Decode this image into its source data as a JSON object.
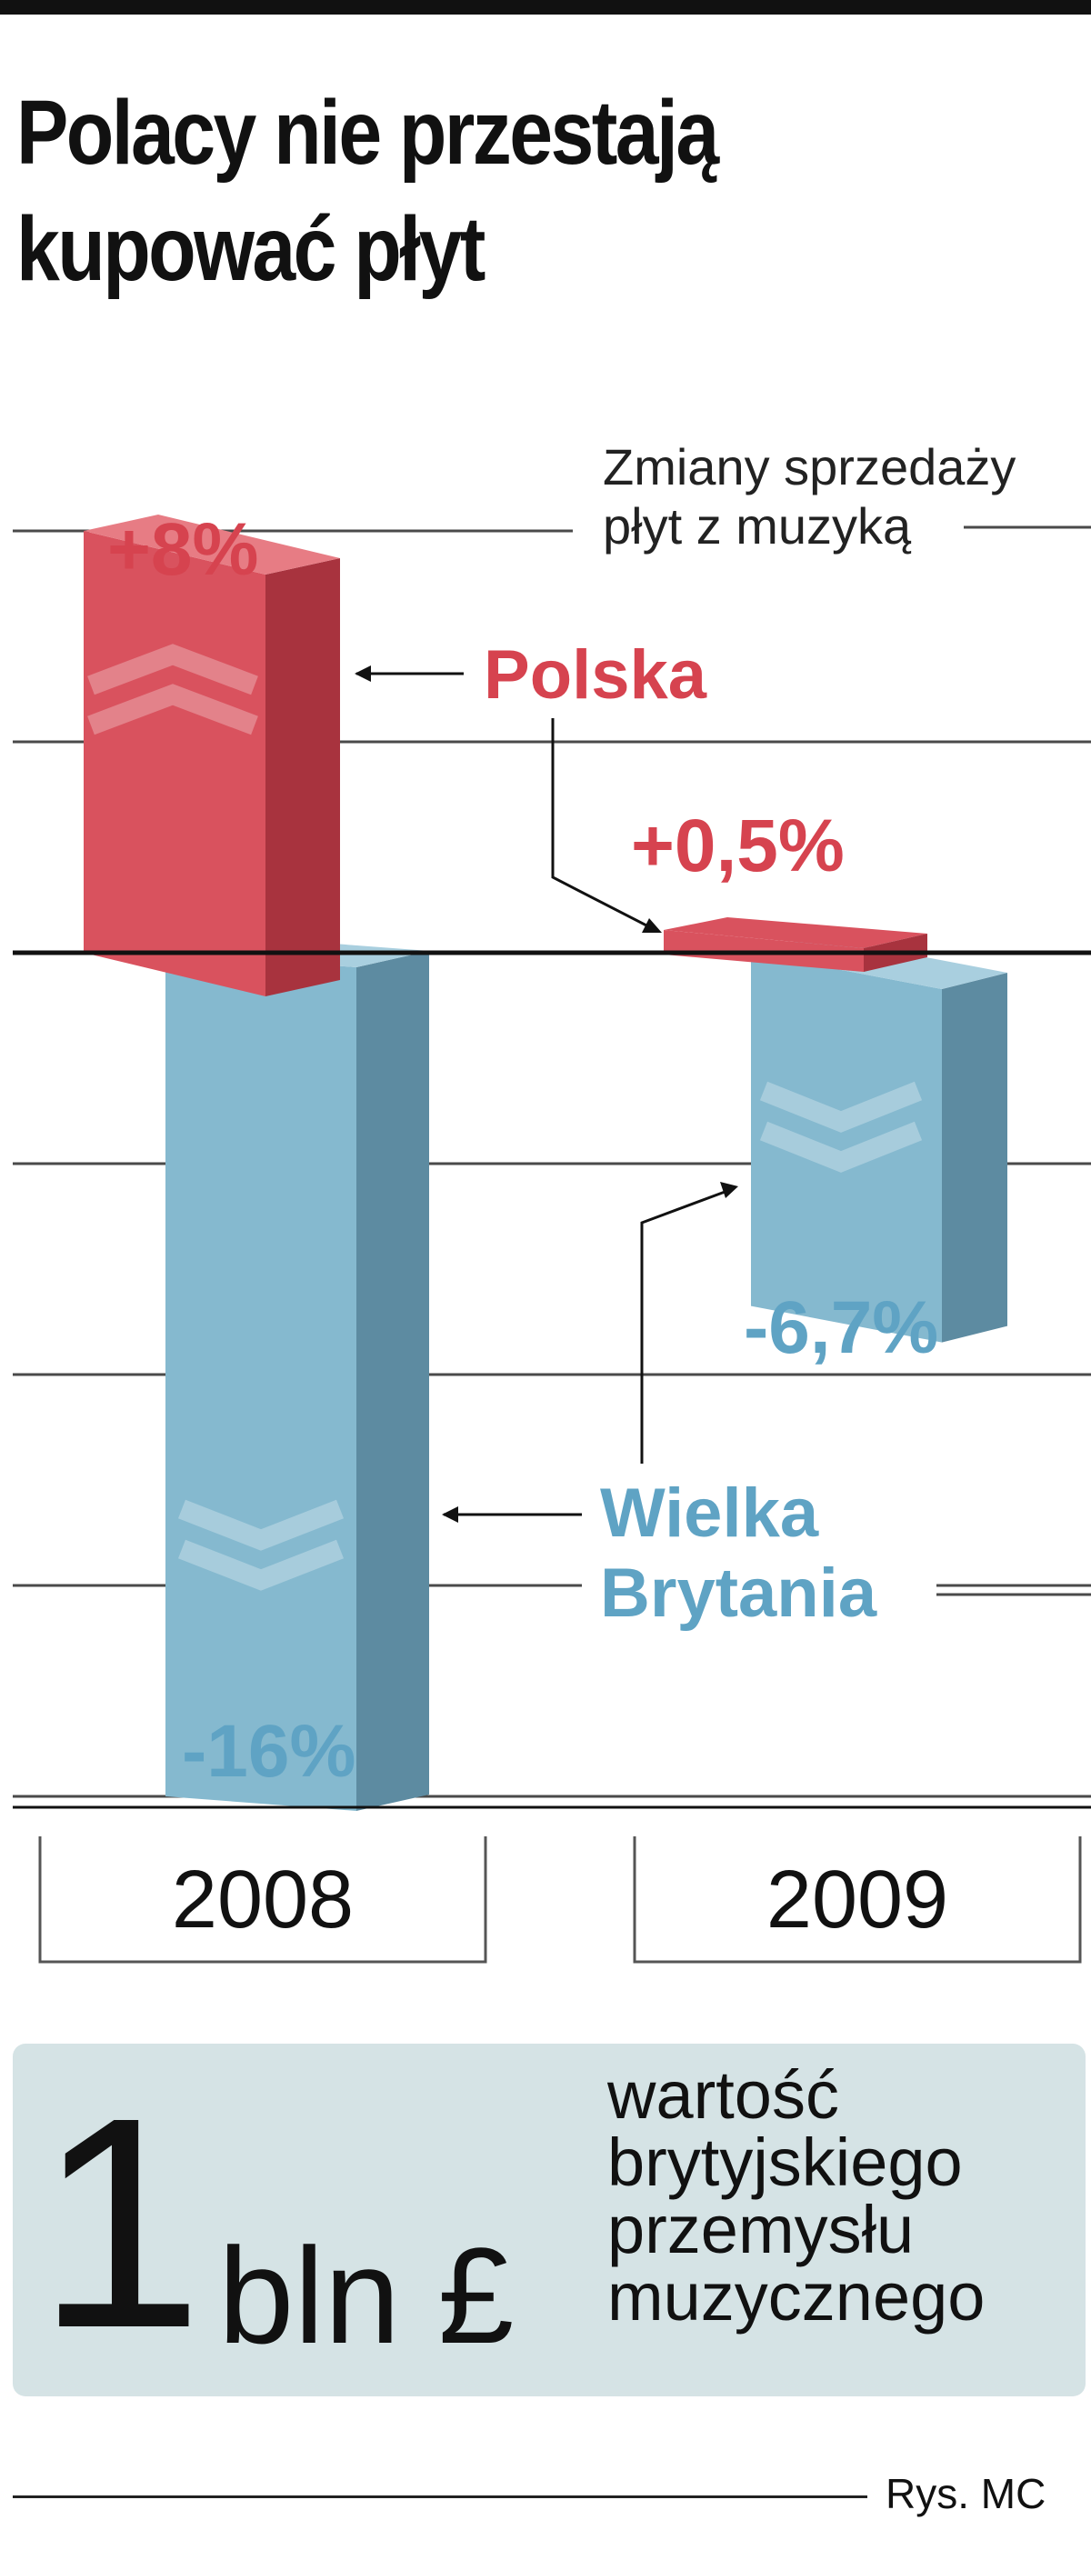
{
  "title": {
    "line1": "Polacy nie przestają",
    "line2": "kupować płyt"
  },
  "chart_data": {
    "type": "bar",
    "subtitle": [
      "Zmiany sprzedaży",
      "płyt z muzyką"
    ],
    "categories": [
      "2008",
      "2009"
    ],
    "series": [
      {
        "name": "Polska",
        "values": [
          8,
          0.5
        ],
        "labels": [
          "+8%",
          "+0,5%"
        ],
        "color": "#d9525e"
      },
      {
        "name": "Wielka Brytania",
        "values": [
          -16,
          -6.7
        ],
        "labels": [
          "-16%",
          "-6,7%"
        ],
        "color": "#85b9cf"
      }
    ],
    "ylim": [
      -16,
      8
    ],
    "grid": true,
    "legend": "inline labels with leader lines",
    "series_label_lines": {
      "polska": [
        "Polska"
      ],
      "wielka_brytania": [
        "Wielka",
        "Brytania"
      ]
    }
  },
  "stat": {
    "big_number": "1",
    "unit": "bln £",
    "description": [
      "wartość",
      "brytyjskiego",
      "przemysłu",
      "muzycznego"
    ]
  },
  "credit": "Rys. MC",
  "colors": {
    "polska": "#d9525e",
    "polska_dark": "#a8333e",
    "polska_light": "#e77c84",
    "uk": "#85b9cf",
    "uk_dark": "#5d8ba1",
    "uk_light": "#a9cfdf",
    "label_red": "#d6434f",
    "label_blue": "#5fa3c4",
    "stat_bg": "#d5e3e5"
  }
}
